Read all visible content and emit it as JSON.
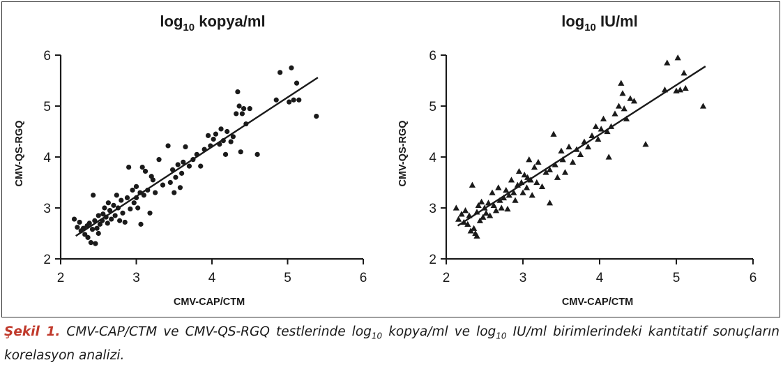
{
  "chart_data": [
    {
      "type": "scatter",
      "title_base": "log",
      "title_sub": "10",
      "title_rest": " kopya/ml",
      "xlabel": "CMV-CAP/CTM",
      "ylabel": "CMV-QS-RGQ",
      "xlim": [
        2,
        6
      ],
      "ylim": [
        2,
        6
      ],
      "xticks": [
        "2",
        "3",
        "4",
        "5",
        "6"
      ],
      "yticks": [
        "2",
        "3",
        "4",
        "5",
        "6"
      ],
      "marker": "circle",
      "grid": false,
      "regression": [
        [
          2.2,
          2.45
        ],
        [
          5.4,
          5.56
        ]
      ],
      "points": [
        [
          2.18,
          2.78
        ],
        [
          2.22,
          2.62
        ],
        [
          2.25,
          2.72
        ],
        [
          2.27,
          2.55
        ],
        [
          2.3,
          2.6
        ],
        [
          2.32,
          2.48
        ],
        [
          2.35,
          2.65
        ],
        [
          2.36,
          2.42
        ],
        [
          2.38,
          2.7
        ],
        [
          2.4,
          2.32
        ],
        [
          2.42,
          2.58
        ],
        [
          2.43,
          3.25
        ],
        [
          2.45,
          2.75
        ],
        [
          2.46,
          2.3
        ],
        [
          2.48,
          2.6
        ],
        [
          2.5,
          2.85
        ],
        [
          2.5,
          2.5
        ],
        [
          2.52,
          2.68
        ],
        [
          2.55,
          2.75
        ],
        [
          2.56,
          2.88
        ],
        [
          2.58,
          3.0
        ],
        [
          2.6,
          2.82
        ],
        [
          2.62,
          2.7
        ],
        [
          2.63,
          3.1
        ],
        [
          2.65,
          2.95
        ],
        [
          2.67,
          2.78
        ],
        [
          2.7,
          3.05
        ],
        [
          2.72,
          2.85
        ],
        [
          2.74,
          3.25
        ],
        [
          2.76,
          3.0
        ],
        [
          2.78,
          2.75
        ],
        [
          2.8,
          3.15
        ],
        [
          2.82,
          2.9
        ],
        [
          2.85,
          2.72
        ],
        [
          2.88,
          3.2
        ],
        [
          2.9,
          3.8
        ],
        [
          2.92,
          2.98
        ],
        [
          2.95,
          3.35
        ],
        [
          2.97,
          3.1
        ],
        [
          3.0,
          3.42
        ],
        [
          3.0,
          3.2
        ],
        [
          3.02,
          3.0
        ],
        [
          3.05,
          3.3
        ],
        [
          3.06,
          2.68
        ],
        [
          3.08,
          3.8
        ],
        [
          3.1,
          3.25
        ],
        [
          3.12,
          3.72
        ],
        [
          3.15,
          3.35
        ],
        [
          3.18,
          2.9
        ],
        [
          3.2,
          3.62
        ],
        [
          3.22,
          3.55
        ],
        [
          3.25,
          3.3
        ],
        [
          3.3,
          3.95
        ],
        [
          3.35,
          3.45
        ],
        [
          3.42,
          4.22
        ],
        [
          3.45,
          3.5
        ],
        [
          3.48,
          3.75
        ],
        [
          3.5,
          3.3
        ],
        [
          3.52,
          3.6
        ],
        [
          3.55,
          3.85
        ],
        [
          3.58,
          3.4
        ],
        [
          3.6,
          3.68
        ],
        [
          3.62,
          3.9
        ],
        [
          3.65,
          4.2
        ],
        [
          3.7,
          3.82
        ],
        [
          3.75,
          3.95
        ],
        [
          3.8,
          4.05
        ],
        [
          3.85,
          3.82
        ],
        [
          3.9,
          4.15
        ],
        [
          3.95,
          4.42
        ],
        [
          3.98,
          4.22
        ],
        [
          4.02,
          4.35
        ],
        [
          4.05,
          4.45
        ],
        [
          4.1,
          4.25
        ],
        [
          4.12,
          4.55
        ],
        [
          4.15,
          4.32
        ],
        [
          4.18,
          4.05
        ],
        [
          4.2,
          4.5
        ],
        [
          4.25,
          4.3
        ],
        [
          4.28,
          4.4
        ],
        [
          4.32,
          4.85
        ],
        [
          4.34,
          5.28
        ],
        [
          4.36,
          5.0
        ],
        [
          4.38,
          4.1
        ],
        [
          4.4,
          4.85
        ],
        [
          4.42,
          4.95
        ],
        [
          4.45,
          4.65
        ],
        [
          4.5,
          4.95
        ],
        [
          4.6,
          4.05
        ],
        [
          4.85,
          5.12
        ],
        [
          4.9,
          5.66
        ],
        [
          5.02,
          5.08
        ],
        [
          5.05,
          5.75
        ],
        [
          5.08,
          5.12
        ],
        [
          5.12,
          5.45
        ],
        [
          5.15,
          5.12
        ],
        [
          5.38,
          4.8
        ]
      ]
    },
    {
      "type": "scatter",
      "title_base": "log",
      "title_sub": "10",
      "title_rest": " IU/ml",
      "xlabel": "CMV-CAP/CTM",
      "ylabel": "CMV-QS-RGQ",
      "xlim": [
        2,
        6
      ],
      "ylim": [
        2,
        6
      ],
      "xticks": [
        "2",
        "3",
        "4",
        "5",
        "6"
      ],
      "yticks": [
        "2",
        "3",
        "4",
        "5",
        "6"
      ],
      "marker": "triangle",
      "grid": false,
      "regression": [
        [
          2.15,
          2.65
        ],
        [
          5.38,
          5.78
        ]
      ],
      "points": [
        [
          2.13,
          3.0
        ],
        [
          2.16,
          2.78
        ],
        [
          2.2,
          2.88
        ],
        [
          2.23,
          2.72
        ],
        [
          2.25,
          2.95
        ],
        [
          2.28,
          2.68
        ],
        [
          2.3,
          2.85
        ],
        [
          2.32,
          2.55
        ],
        [
          2.34,
          3.45
        ],
        [
          2.36,
          2.6
        ],
        [
          2.38,
          2.5
        ],
        [
          2.4,
          2.92
        ],
        [
          2.42,
          3.05
        ],
        [
          2.44,
          2.75
        ],
        [
          2.46,
          3.12
        ],
        [
          2.48,
          2.82
        ],
        [
          2.5,
          3.0
        ],
        [
          2.52,
          2.9
        ],
        [
          2.55,
          3.1
        ],
        [
          2.57,
          2.85
        ],
        [
          2.6,
          3.3
        ],
        [
          2.62,
          3.05
        ],
        [
          2.65,
          2.95
        ],
        [
          2.68,
          3.4
        ],
        [
          2.7,
          3.15
        ],
        [
          2.72,
          3.0
        ],
        [
          2.75,
          3.2
        ],
        [
          2.78,
          3.35
        ],
        [
          2.8,
          2.98
        ],
        [
          2.82,
          3.25
        ],
        [
          2.85,
          3.55
        ],
        [
          2.88,
          3.3
        ],
        [
          2.9,
          3.15
        ],
        [
          2.93,
          3.45
        ],
        [
          2.95,
          3.72
        ],
        [
          2.98,
          3.5
        ],
        [
          3.0,
          3.3
        ],
        [
          3.02,
          3.65
        ],
        [
          3.05,
          3.4
        ],
        [
          3.08,
          3.95
        ],
        [
          3.1,
          3.55
        ],
        [
          3.12,
          3.25
        ],
        [
          3.15,
          3.8
        ],
        [
          3.18,
          3.5
        ],
        [
          3.2,
          3.9
        ],
        [
          3.25,
          3.42
        ],
        [
          3.3,
          3.7
        ],
        [
          3.35,
          3.1
        ],
        [
          3.4,
          4.45
        ],
        [
          3.42,
          3.85
        ],
        [
          3.45,
          3.6
        ],
        [
          3.5,
          4.12
        ],
        [
          3.52,
          3.95
        ],
        [
          3.55,
          3.7
        ],
        [
          3.6,
          4.2
        ],
        [
          3.65,
          3.9
        ],
        [
          3.7,
          4.15
        ],
        [
          3.75,
          4.05
        ],
        [
          3.8,
          4.3
        ],
        [
          3.85,
          4.2
        ],
        [
          3.9,
          4.42
        ],
        [
          3.95,
          4.6
        ],
        [
          3.98,
          4.35
        ],
        [
          4.02,
          4.55
        ],
        [
          4.05,
          4.75
        ],
        [
          4.1,
          4.5
        ],
        [
          4.12,
          4.0
        ],
        [
          4.15,
          4.6
        ],
        [
          4.2,
          4.85
        ],
        [
          4.25,
          5.0
        ],
        [
          4.28,
          5.45
        ],
        [
          4.3,
          5.25
        ],
        [
          4.32,
          4.95
        ],
        [
          4.35,
          4.75
        ],
        [
          4.4,
          5.15
        ],
        [
          4.45,
          5.1
        ],
        [
          4.6,
          4.25
        ],
        [
          4.85,
          5.32
        ],
        [
          4.88,
          5.85
        ],
        [
          5.0,
          5.3
        ],
        [
          5.02,
          5.95
        ],
        [
          5.05,
          5.32
        ],
        [
          5.1,
          5.65
        ],
        [
          5.12,
          5.35
        ],
        [
          5.35,
          5.0
        ],
        [
          2.4,
          2.45
        ],
        [
          3.06,
          3.6
        ],
        [
          3.35,
          3.75
        ]
      ]
    }
  ],
  "caption": {
    "lead": "Şekil 1.",
    "part1": " CMV-CAP/CTM ve CMV-QS-RGQ testlerinde log",
    "sub1": "10",
    "part2": " kopya/ml ve log",
    "sub2": "10",
    "part3": " IU/ml birimlerindeki kantitatif sonuçların korelasyon analizi."
  },
  "colors": {
    "ink": "#1a1a1a",
    "frame": "#333333",
    "caption_lead": "#c0392b"
  }
}
